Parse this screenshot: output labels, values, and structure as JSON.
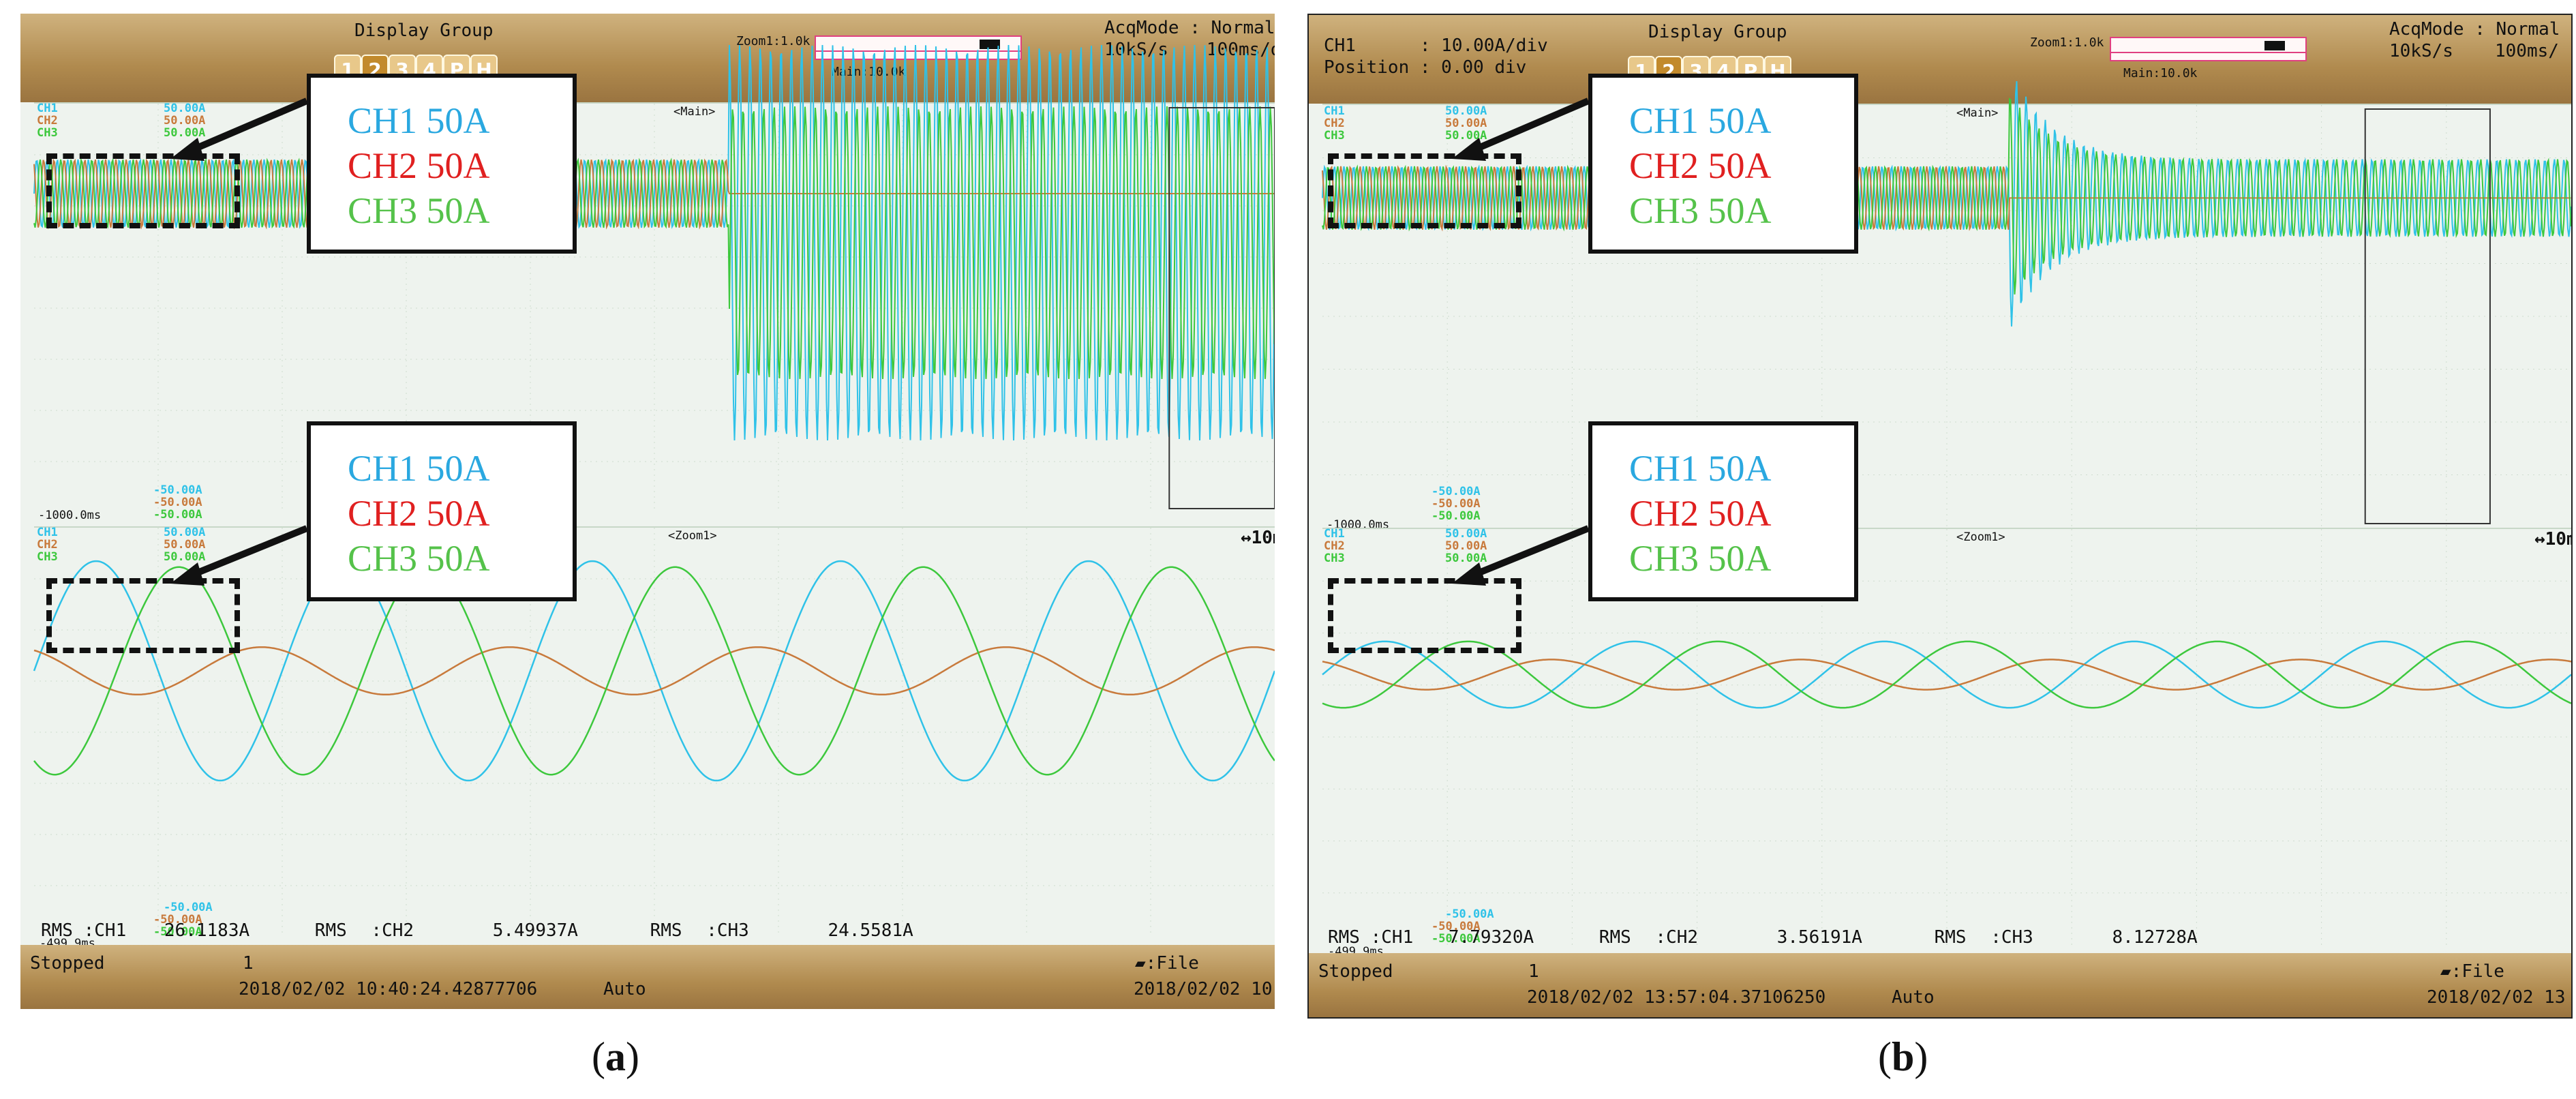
{
  "colors": {
    "ch1": "#2fc2e8",
    "ch2": "#c87a3c",
    "ch3": "#3dc83d",
    "legend_ch1": "#2aa8e0",
    "legend_ch2": "#e02020",
    "legend_ch3": "#55c24a"
  },
  "panels": [
    {
      "caption_open": "(",
      "caption_letter": "a",
      "caption_close": ")",
      "display_group": "Display Group",
      "tabs": [
        "1",
        "2",
        "3",
        "4",
        "P",
        "H"
      ],
      "zoom_label": "Zoom1:1.0k",
      "main_label": "Main:10.0k",
      "acq_mode": "AcqMode : Normal",
      "sample_rate": "10kS/s",
      "time_div": "100ms/d",
      "ch_info_line1": "",
      "ch_info_line2": "",
      "main_tag": "<Main>",
      "zoom_tag": "<Zoom1>",
      "zoom_right": "↔10m",
      "left_time": "-1000.0ms",
      "bottom_time": "-499.9ms",
      "top_scale": [
        "CH1",
        "50.00A",
        "CH2",
        "50.00A",
        "CH3",
        "50.00A"
      ],
      "mid_scale": [
        "-50.00A",
        "-50.00A",
        "-50.00A"
      ],
      "mid_names": [
        "CH1",
        "CH2",
        "CH3"
      ],
      "mid_vals": [
        "50.00A",
        "50.00A",
        "50.00A"
      ],
      "bot_scale": [
        "-50.00A",
        "-50.00A",
        "-50.00A"
      ],
      "rms": {
        "k1": "RMS",
        "c1": ":CH1",
        "v1": "26.1183A",
        "k2": "RMS",
        "c2": ":CH2",
        "v2": "5.49937A",
        "k3": "RMS",
        "c3": ":CH3",
        "v3": "24.5581A"
      },
      "status": "Stopped",
      "count": "1",
      "timestamp": "2018/02/02 10:40:24.42877706",
      "trigger": "Auto",
      "file": "File",
      "date_right": "2018/02/02 10",
      "legend_top": [
        "CH1 50A",
        "CH2 50A",
        "CH3 50A"
      ],
      "legend_bottom": [
        "CH1 50A",
        "CH2 50A",
        "CH3 50A"
      ]
    },
    {
      "caption_open": "(",
      "caption_letter": "b",
      "caption_close": ")",
      "display_group": "Display Group",
      "tabs": [
        "1",
        "2",
        "3",
        "4",
        "P",
        "H"
      ],
      "zoom_label": "Zoom1:1.0k",
      "main_label": "Main:10.0k",
      "acq_mode": "AcqMode : Normal",
      "sample_rate": "10kS/s",
      "time_div": "100ms/",
      "ch_info_line1": "CH1      : 10.00A/div",
      "ch_info_line2": "Position : 0.00 div",
      "main_tag": "<Main>",
      "zoom_tag": "<Zoom1>",
      "zoom_right": "↔10m",
      "left_time": "-1000.0ms",
      "bottom_time": "-499.9ms",
      "top_scale": [
        "CH1",
        "50.00A",
        "CH2",
        "50.00A",
        "CH3",
        "50.00A"
      ],
      "mid_scale": [
        "-50.00A",
        "-50.00A",
        "-50.00A"
      ],
      "mid_names": [
        "CH1",
        "CH2",
        "CH3"
      ],
      "mid_vals": [
        "50.00A",
        "50.00A",
        "50.00A"
      ],
      "bot_scale": [
        "-50.00A",
        "-50.00A",
        "-50.00A"
      ],
      "rms": {
        "k1": "RMS",
        "c1": ":CH1",
        "v1": "7.79320A",
        "k2": "RMS",
        "c2": ":CH2",
        "v2": "3.56191A",
        "k3": "RMS",
        "c3": ":CH3",
        "v3": "8.12728A"
      },
      "status": "Stopped",
      "count": "1",
      "timestamp": "2018/02/02 13:57:04.37106250",
      "trigger": "Auto",
      "file": "File",
      "date_right": "2018/02/02 13",
      "legend_top": [
        "CH1 50A",
        "CH2 50A",
        "CH3 50A"
      ],
      "legend_bottom": [
        "CH1 50A",
        "CH2 50A",
        "CH3 50A"
      ]
    }
  ],
  "chart_data": [
    {
      "type": "line",
      "title": "",
      "main_window": {
        "series": [
          {
            "name": "CH1",
            "before_amplitude": 10,
            "after_amplitude": 58,
            "event_frac": 0.56
          },
          {
            "name": "CH2",
            "before_amplitude": 10,
            "after_amplitude": 0,
            "event_frac": 0.56
          },
          {
            "name": "CH3",
            "before_amplitude": 10,
            "after_amplitude": 40,
            "event_frac": 0.56
          }
        ]
      },
      "zoom_window": {
        "series": [
          {
            "name": "CH1",
            "amplitude": 37,
            "cycles": 5,
            "phase_deg": 0
          },
          {
            "name": "CH2",
            "amplitude": 8,
            "cycles": 5,
            "phase_deg": 120
          },
          {
            "name": "CH3",
            "amplitude": 35,
            "cycles": 5,
            "phase_deg": -120
          }
        ]
      },
      "rms": {
        "CH1": 26.1183,
        "CH2": 5.49937,
        "CH3": 24.5581
      },
      "unit": "A"
    },
    {
      "type": "line",
      "title": "",
      "main_window": {
        "series": [
          {
            "name": "CH1",
            "before_amplitude": 9,
            "after_amplitude": 11,
            "transient_peak": 38,
            "event_frac": 0.55
          },
          {
            "name": "CH2",
            "before_amplitude": 9,
            "after_amplitude": 0,
            "event_frac": 0.55
          },
          {
            "name": "CH3",
            "before_amplitude": 9,
            "after_amplitude": 11,
            "transient_peak": 30,
            "event_frac": 0.55
          }
        ]
      },
      "zoom_window": {
        "series": [
          {
            "name": "CH1",
            "amplitude": 11,
            "cycles": 5,
            "phase_deg": 0
          },
          {
            "name": "CH2",
            "amplitude": 5,
            "cycles": 5,
            "phase_deg": 120
          },
          {
            "name": "CH3",
            "amplitude": 11,
            "cycles": 5,
            "phase_deg": -120
          }
        ]
      },
      "rms": {
        "CH1": 7.7932,
        "CH2": 3.56191,
        "CH3": 8.12728
      },
      "unit": "A"
    }
  ]
}
